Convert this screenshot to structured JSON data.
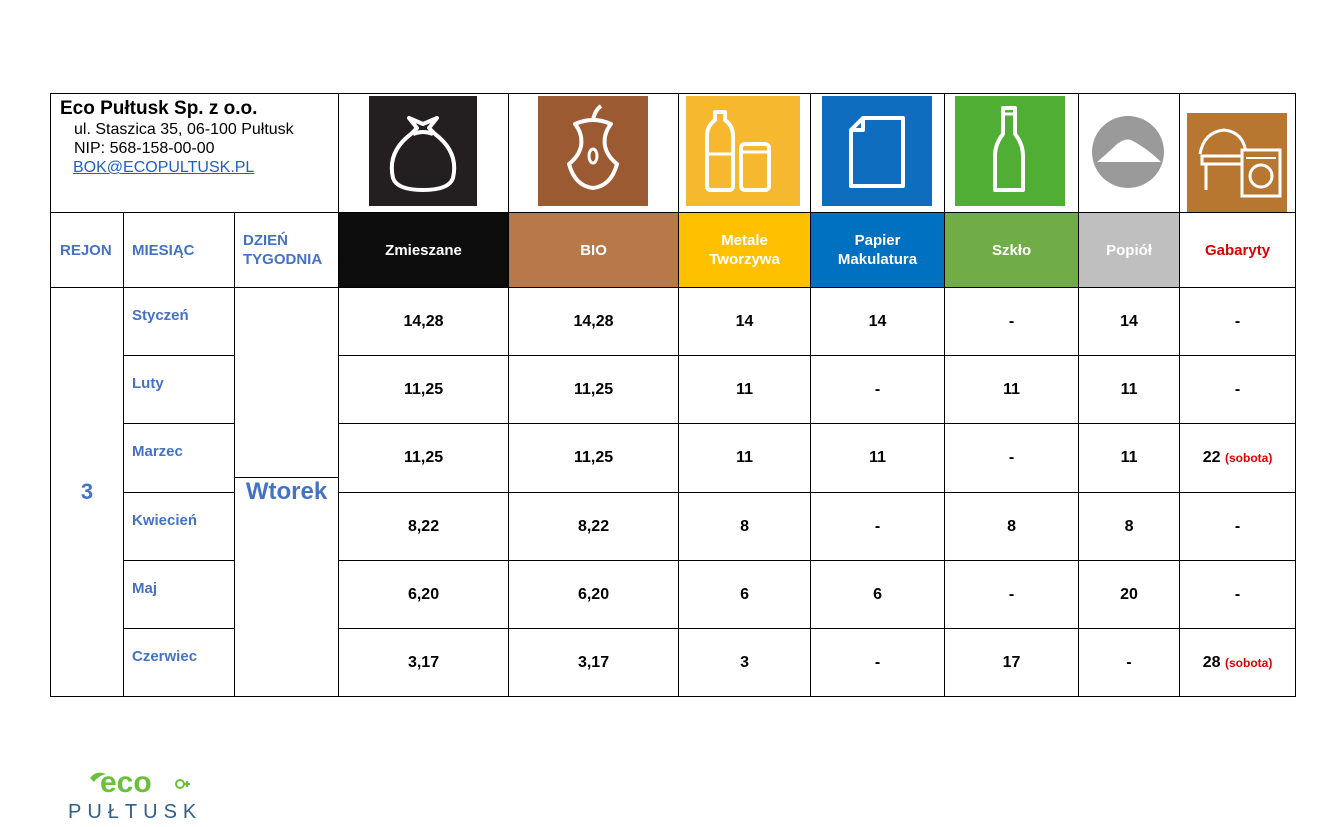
{
  "company": {
    "name": "Eco Pułtusk Sp. z o.o.",
    "address": "ul. Staszica 35, 06-100 Pułtusk",
    "nip": "NIP: 568-158-00-00",
    "email": "BOK@ECOPULTUSK.PL"
  },
  "icons": [
    {
      "name": "trash-bag-icon",
      "color": "#231f20"
    },
    {
      "name": "apple-core-icon",
      "color": "#9b5a32"
    },
    {
      "name": "bottles-can-icon",
      "color": "#f6b82e"
    },
    {
      "name": "paper-icon",
      "color": "#0f6dbf"
    },
    {
      "name": "glass-bottle-icon",
      "color": "#4fae33"
    },
    {
      "name": "ash-pile-icon",
      "color": "#9a9a9a"
    },
    {
      "name": "furniture-appliance-icon",
      "color": "#b87731"
    }
  ],
  "headers": {
    "region": "REJON",
    "month": "MIESIĄC",
    "day_line1": "DZIEŃ",
    "day_line2": "TYGODNIA",
    "categories": [
      {
        "line1": "Zmieszane",
        "line2": "",
        "bg": "#0d0d0d",
        "fg": "#ffffff"
      },
      {
        "line1": "BIO",
        "line2": "",
        "bg": "#b97849",
        "fg": "#ffffff"
      },
      {
        "line1": "Metale",
        "line2": "Tworzywa",
        "bg": "#ffc000",
        "fg": "#ffffff"
      },
      {
        "line1": "Papier",
        "line2": "Makulatura",
        "bg": "#0070c0",
        "fg": "#ffffff"
      },
      {
        "line1": "Szkło",
        "line2": "",
        "bg": "#70ad47",
        "fg": "#ffffff"
      },
      {
        "line1": "Popiół",
        "line2": "",
        "bg": "#bfbfbf",
        "fg": "#ffffff"
      },
      {
        "line1": "Gabaryty",
        "line2": "",
        "bg": "#ffffff",
        "fg": "#e00000"
      }
    ]
  },
  "region": "3",
  "weekday": "Wtorek",
  "rows": [
    {
      "month": "Styczeń",
      "values": [
        "14,28",
        "14,28",
        "14",
        "14",
        "-",
        "14",
        "-"
      ],
      "note": ""
    },
    {
      "month": "Luty",
      "values": [
        "11,25",
        "11,25",
        "11",
        "-",
        "11",
        "11",
        "-"
      ],
      "note": ""
    },
    {
      "month": "Marzec",
      "values": [
        "11,25",
        "11,25",
        "11",
        "11",
        "-",
        "11",
        "22"
      ],
      "note": "(sobota)"
    },
    {
      "month": "Kwiecień",
      "values": [
        "8,22",
        "8,22",
        "8",
        "-",
        "8",
        "8",
        "-"
      ],
      "note": ""
    },
    {
      "month": "Maj",
      "values": [
        "6,20",
        "6,20",
        "6",
        "6",
        "-",
        "20",
        "-"
      ],
      "note": ""
    },
    {
      "month": "Czerwiec",
      "values": [
        "3,17",
        "3,17",
        "3",
        "-",
        "17",
        "-",
        "28"
      ],
      "note": "(sobota)"
    }
  ],
  "logo": {
    "top": "eco",
    "bottom": "PUŁTUSK",
    "color_green": "#6cbf3b",
    "color_blue": "#2f5f8a"
  }
}
